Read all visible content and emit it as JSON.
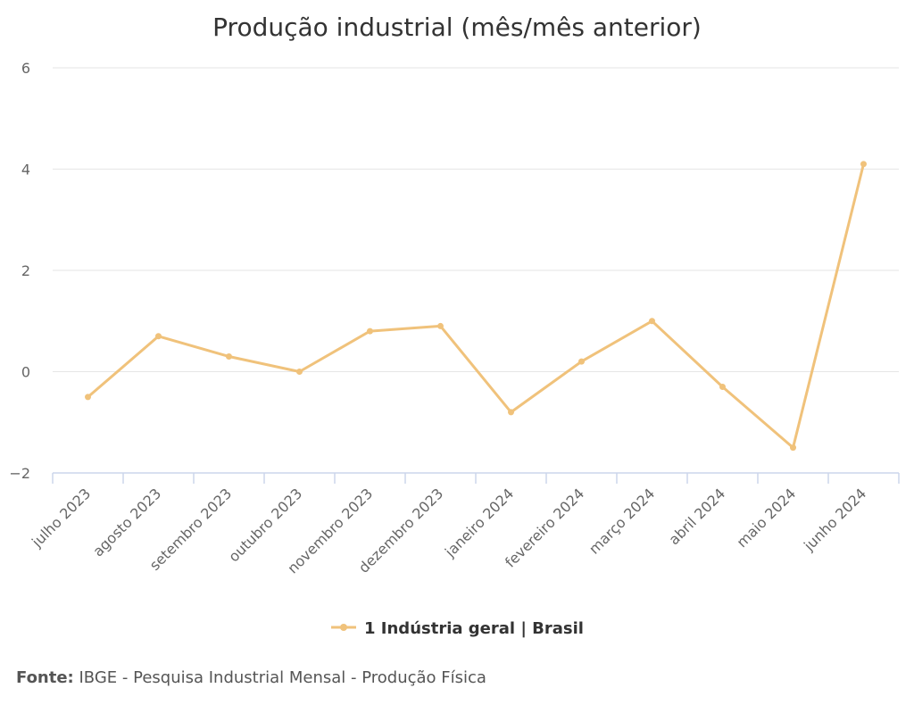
{
  "chart_data": {
    "type": "line",
    "title": "Produção industrial (mês/mês anterior)",
    "categories": [
      "julho 2023",
      "agosto 2023",
      "setembro 2023",
      "outubro 2023",
      "novembro 2023",
      "dezembro 2023",
      "janeiro 2024",
      "fevereiro 2024",
      "março 2024",
      "abril 2024",
      "maio 2024",
      "junho 2024"
    ],
    "series": [
      {
        "name": "1 Indústria geral | Brasil",
        "values": [
          -0.5,
          0.7,
          0.3,
          0.0,
          0.8,
          0.9,
          -0.8,
          0.2,
          1.0,
          -0.3,
          -1.5,
          4.1
        ]
      }
    ],
    "ylim": [
      -2,
      6
    ],
    "yticks": [
      -2,
      0,
      2,
      4,
      6
    ],
    "ytick_labels": [
      "−2",
      "0",
      "2",
      "4",
      "6"
    ],
    "grid": true,
    "legend_position": "bottom",
    "colors": {
      "series": "#f0c27b",
      "grid": "#e6e6e6",
      "axis": "#ccd6eb"
    }
  },
  "source": {
    "label": "Fonte:",
    "text": "IBGE - Pesquisa Industrial Mensal - Produção Física"
  }
}
